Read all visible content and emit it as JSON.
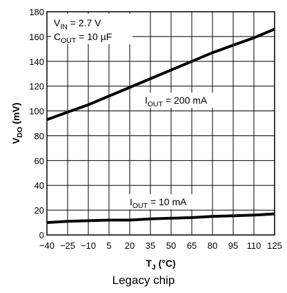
{
  "chart_data": {
    "type": "line",
    "xlabel": {
      "main": "T",
      "sub": "J",
      "rest": " (°C)"
    },
    "ylabel": {
      "main": "V",
      "sub": "DO",
      "rest": " (mV)"
    },
    "xlim": [
      -40,
      125
    ],
    "ylim": [
      0,
      180
    ],
    "x_ticks": [
      -40,
      -25,
      -10,
      5,
      20,
      35,
      50,
      65,
      80,
      95,
      110,
      125
    ],
    "x_tick_labels": [
      "−40",
      "−25",
      "−10",
      "5",
      "20",
      "35",
      "50",
      "65",
      "80",
      "95",
      "110",
      "125"
    ],
    "y_ticks": [
      0,
      20,
      40,
      60,
      80,
      100,
      120,
      140,
      160,
      180
    ],
    "grid": true,
    "conditions": [
      {
        "main": "V",
        "sub": "IN",
        "rest": " = 2.7 V"
      },
      {
        "main": "C",
        "sub": "OUT",
        "rest": " = 10 µF"
      }
    ],
    "series": [
      {
        "name": {
          "main": "I",
          "sub": "OUT",
          "rest": " = 200 mA"
        },
        "x": [
          -40,
          -25,
          -10,
          5,
          20,
          35,
          50,
          65,
          80,
          95,
          110,
          125
        ],
        "values": [
          93,
          99,
          105,
          112,
          119,
          126,
          133,
          140,
          147,
          153,
          159,
          166
        ]
      },
      {
        "name": {
          "main": "I",
          "sub": "OUT",
          "rest": " = 10 mA"
        },
        "x": [
          -40,
          -25,
          -10,
          5,
          20,
          35,
          50,
          65,
          80,
          95,
          110,
          125
        ],
        "values": [
          10,
          11,
          11.5,
          12,
          12,
          13,
          13.5,
          14,
          15,
          15.5,
          16,
          17
        ]
      }
    ]
  },
  "caption": "Legacy chip"
}
